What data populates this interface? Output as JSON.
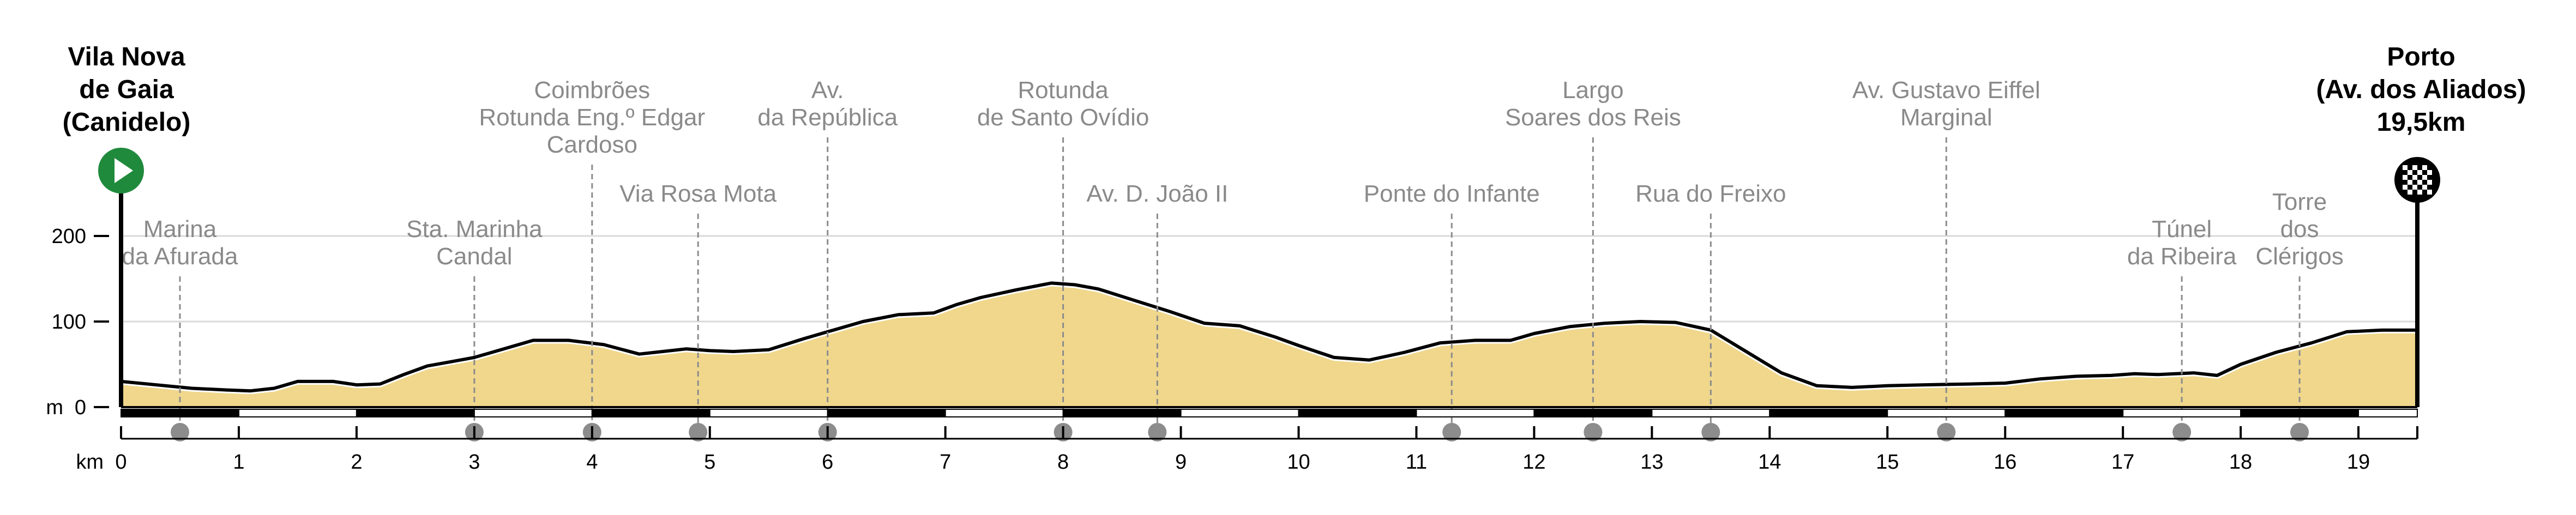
{
  "colors": {
    "fill": "#f0d78c",
    "line": "#000000",
    "grid": "#d9d9d9",
    "marker": "#8c8c8c",
    "start": "#1f8a3c"
  },
  "chart_data": {
    "type": "area",
    "xlabel": "km",
    "ylabel": "m",
    "xlim": [
      0,
      19.5
    ],
    "ylim": [
      0,
      200
    ],
    "yticks": [
      {
        "value": 0,
        "label": "0"
      },
      {
        "value": 100,
        "label": "100"
      },
      {
        "value": 200,
        "label": "200"
      }
    ],
    "xticks": [
      0,
      1,
      2,
      3,
      4,
      5,
      6,
      7,
      8,
      9,
      10,
      11,
      12,
      13,
      14,
      15,
      16,
      17,
      18,
      19
    ],
    "grid": true,
    "series": [
      {
        "x": [
          0,
          0.3,
          0.6,
          0.9,
          1.1,
          1.3,
          1.5,
          1.8,
          2.0,
          2.2,
          2.4,
          2.6,
          2.8,
          3.0,
          3.2,
          3.5,
          3.8,
          4.1,
          4.4,
          4.6,
          4.8,
          5.0,
          5.2,
          5.5,
          5.8,
          6.0,
          6.3,
          6.6,
          6.9,
          7.1,
          7.3,
          7.6,
          7.9,
          8.1,
          8.3,
          8.6,
          8.9,
          9.2,
          9.5,
          9.8,
          10.0,
          10.3,
          10.6,
          10.9,
          11.2,
          11.5,
          11.8,
          12.0,
          12.3,
          12.6,
          12.9,
          13.2,
          13.5,
          13.8,
          14.1,
          14.4,
          14.7,
          15.0,
          15.3,
          15.7,
          16.0,
          16.3,
          16.6,
          16.9,
          17.1,
          17.3,
          17.6,
          17.8,
          18.0,
          18.3,
          18.6,
          18.9,
          19.2,
          19.5
        ],
        "y": [
          30,
          26,
          22,
          20,
          19,
          22,
          30,
          30,
          26,
          27,
          38,
          48,
          53,
          58,
          66,
          78,
          78,
          73,
          62,
          65,
          68,
          66,
          65,
          67,
          80,
          88,
          100,
          108,
          110,
          120,
          128,
          137,
          145,
          143,
          138,
          125,
          112,
          98,
          95,
          82,
          72,
          58,
          55,
          64,
          75,
          78,
          78,
          86,
          94,
          98,
          100,
          99,
          90,
          65,
          40,
          25,
          23,
          25,
          26,
          27,
          28,
          33,
          36,
          37,
          39,
          38,
          40,
          37,
          50,
          64,
          75,
          88,
          90,
          90
        ]
      }
    ],
    "annotations": [
      {
        "km": 0.5,
        "text": [
          "Marina",
          "da Afurada"
        ]
      },
      {
        "km": 3.0,
        "text": [
          "Sta. Marinha",
          "Candal"
        ]
      },
      {
        "km": 4.0,
        "text": [
          "Coimbrões",
          "Rotunda Eng.º Edgar",
          "Cardoso"
        ]
      },
      {
        "km": 4.9,
        "text": [
          "Via Rosa Mota"
        ]
      },
      {
        "km": 6.0,
        "text": [
          "Av.",
          "da República"
        ]
      },
      {
        "km": 8.0,
        "text": [
          "Rotunda",
          "de Santo Ovídio"
        ]
      },
      {
        "km": 8.8,
        "text": [
          "Av. D. João II"
        ]
      },
      {
        "km": 11.3,
        "text": [
          "Ponte do Infante"
        ]
      },
      {
        "km": 12.5,
        "text": [
          "Largo",
          "Soares dos Reis"
        ]
      },
      {
        "km": 13.5,
        "text": [
          "Rua do Freixo"
        ]
      },
      {
        "km": 15.5,
        "text": [
          "Av. Gustavo Eiffel",
          "Marginal"
        ]
      },
      {
        "km": 17.5,
        "text": [
          "Túnel",
          "da Ribeira"
        ]
      },
      {
        "km": 18.5,
        "text": [
          "Torre",
          "dos",
          "Clérigos"
        ]
      }
    ],
    "start_label": [
      "Vila Nova",
      "de Gaia",
      "(Canidelo)"
    ],
    "finish_label": [
      "Porto",
      "(Av. dos Aliados)",
      "19,5km"
    ]
  }
}
